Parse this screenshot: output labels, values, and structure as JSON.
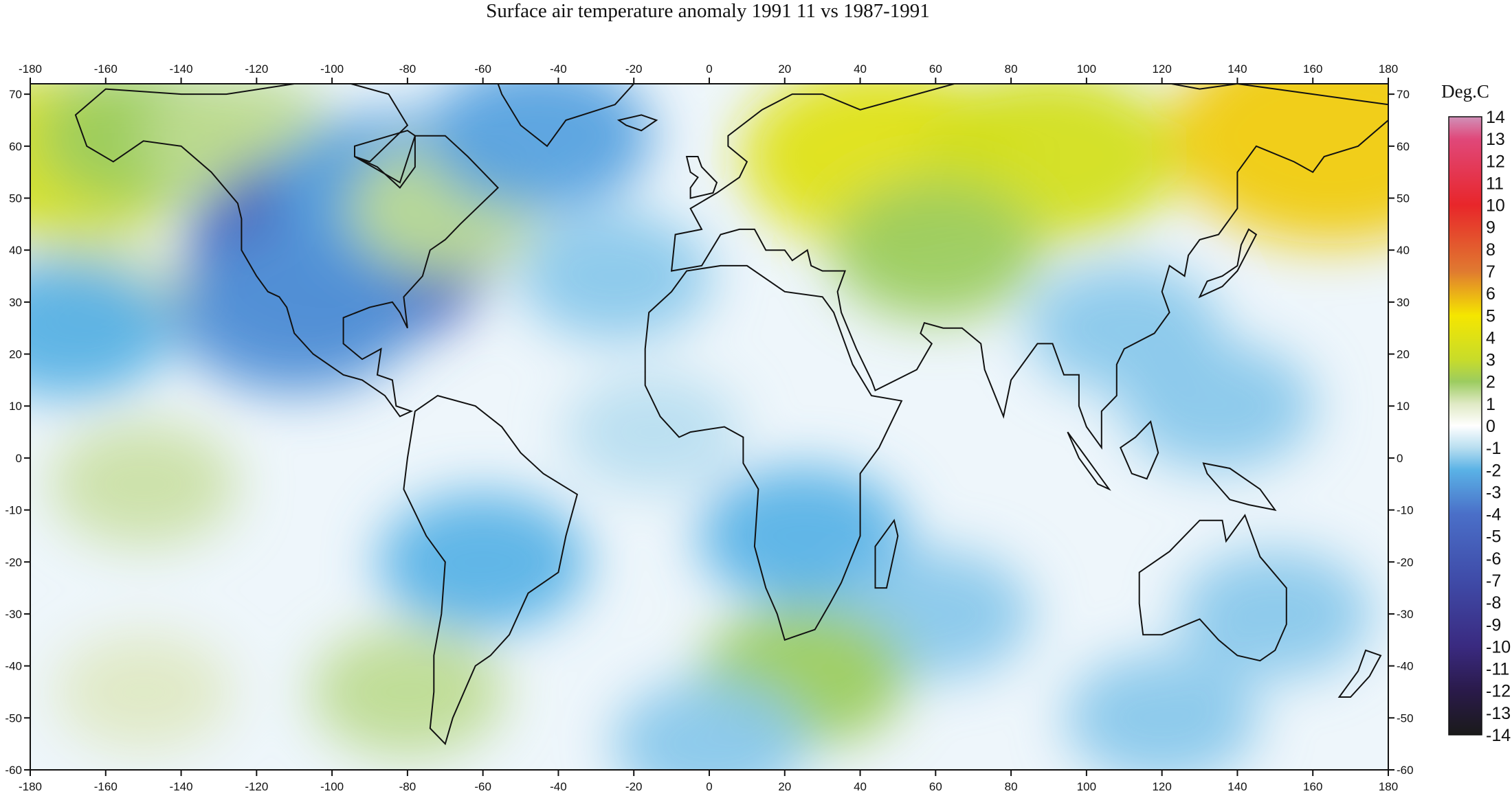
{
  "title": "Surface air temperature anomaly 1991 11 vs 1987-1991",
  "chart_data": {
    "type": "heatmap",
    "title": "Surface air temperature anomaly 1991 11 vs 1987-1991",
    "x_ticks": [
      -180,
      -160,
      -140,
      -120,
      -100,
      -80,
      -60,
      -40,
      -20,
      0,
      20,
      40,
      60,
      80,
      100,
      120,
      140,
      160,
      180
    ],
    "y_ticks": [
      70,
      60,
      50,
      40,
      30,
      20,
      10,
      0,
      -10,
      -20,
      -30,
      -40,
      -50,
      -60
    ],
    "xlim": [
      -180,
      180
    ],
    "ylim": [
      -60,
      72
    ],
    "colorbar": {
      "title": "Deg.C",
      "levels": [
        14,
        13,
        12,
        11,
        10,
        9,
        8,
        7,
        6,
        5,
        4,
        3,
        2,
        1,
        0,
        -1,
        -2,
        -3,
        -4,
        -5,
        -6,
        -7,
        -8,
        -9,
        -10,
        -11,
        -12,
        -13,
        -14
      ],
      "range": [
        -14,
        14
      ],
      "colors": [
        {
          "value": -14,
          "color": "#1a1a1a"
        },
        {
          "value": -12,
          "color": "#2a1a4a"
        },
        {
          "value": -10,
          "color": "#3a2a80"
        },
        {
          "value": -7,
          "color": "#3f4ba8"
        },
        {
          "value": -4,
          "color": "#4a6fc8"
        },
        {
          "value": -2,
          "color": "#5ab2e6"
        },
        {
          "value": -1,
          "color": "#b8def0"
        },
        {
          "value": 0,
          "color": "#ffffff"
        },
        {
          "value": 1,
          "color": "#dfe9c4"
        },
        {
          "value": 2,
          "color": "#9ccc60"
        },
        {
          "value": 3,
          "color": "#c8dc2a"
        },
        {
          "value": 5,
          "color": "#f5e600"
        },
        {
          "value": 7,
          "color": "#e07a30"
        },
        {
          "value": 10,
          "color": "#e8262a"
        },
        {
          "value": 13,
          "color": "#e0487a"
        },
        {
          "value": 14,
          "color": "#d090b8"
        }
      ]
    },
    "anomaly_cells": [
      {
        "lon": -170,
        "lat": 58,
        "value": 3.5
      },
      {
        "lon": -150,
        "lat": 62,
        "value": 2
      },
      {
        "lon": -125,
        "lat": 62,
        "value": 1.5
      },
      {
        "lon": -160,
        "lat": 30,
        "value": 1.2
      },
      {
        "lon": -170,
        "lat": 25,
        "value": -2
      },
      {
        "lon": -98,
        "lat": 40,
        "value": -5
      },
      {
        "lon": -110,
        "lat": 28,
        "value": -3
      },
      {
        "lon": -85,
        "lat": 52,
        "value": -2.5
      },
      {
        "lon": -70,
        "lat": 48,
        "value": 1.5
      },
      {
        "lon": -45,
        "lat": 62,
        "value": -2.5
      },
      {
        "lon": -25,
        "lat": 35,
        "value": -1.5
      },
      {
        "lon": 45,
        "lat": 58,
        "value": 4
      },
      {
        "lon": 90,
        "lat": 58,
        "value": 3.5
      },
      {
        "lon": 165,
        "lat": 62,
        "value": 5.5
      },
      {
        "lon": 60,
        "lat": 40,
        "value": 2
      },
      {
        "lon": 110,
        "lat": 25,
        "value": -1.5
      },
      {
        "lon": 135,
        "lat": 10,
        "value": -1.5
      },
      {
        "lon": 25,
        "lat": -15,
        "value": -2
      },
      {
        "lon": -60,
        "lat": -20,
        "value": -2
      },
      {
        "lon": 60,
        "lat": -30,
        "value": -1.5
      },
      {
        "lon": 150,
        "lat": -30,
        "value": -1.5
      },
      {
        "lon": -150,
        "lat": -5,
        "value": 1.3
      },
      {
        "lon": 25,
        "lat": -42,
        "value": 2
      },
      {
        "lon": -80,
        "lat": -45,
        "value": 1.5
      },
      {
        "lon": -150,
        "lat": -45,
        "value": 1
      },
      {
        "lon": 120,
        "lat": -50,
        "value": -1.5
      },
      {
        "lon": 0,
        "lat": -55,
        "value": -1.5
      },
      {
        "lon": -15,
        "lat": 5,
        "value": -1
      }
    ]
  }
}
